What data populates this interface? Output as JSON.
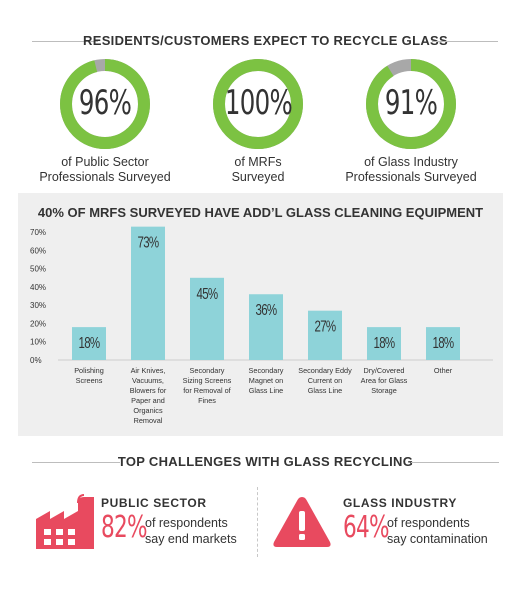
{
  "survey": {
    "title": "RESIDENTS/CUSTOMERS EXPECT TO RECYCLE GLASS",
    "stats": [
      {
        "value": "96%",
        "fraction": 0.96,
        "caption_line1": "of Public Sector",
        "caption_line2": "Professionals Surveyed"
      },
      {
        "value": "100%",
        "fraction": 1.0,
        "caption_line1": "of MRFs",
        "caption_line2": "Surveyed"
      },
      {
        "value": "91%",
        "fraction": 0.91,
        "caption_line1": "of Glass Industry",
        "caption_line2": "Professionals Surveyed"
      }
    ],
    "colors": {
      "ring": "#7cc242",
      "remainder": "#a8a8a8"
    }
  },
  "chart_data": {
    "type": "bar",
    "title": "40% OF MRFS SURVEYED HAVE ADD’L GLASS CLEANING EQUIPMENT",
    "categories": [
      [
        "Polishing",
        "Screens"
      ],
      [
        "Air Knives,",
        "Vacuums,",
        "Blowers for",
        "Paper and",
        "Organics",
        "Removal"
      ],
      [
        "Secondary",
        "Sizing Screens",
        "for Removal of",
        "Fines"
      ],
      [
        "Secondary",
        "Magnet on",
        "Glass Line"
      ],
      [
        "Secondary Eddy",
        "Current on",
        "Glass Line"
      ],
      [
        "Dry/Covered",
        "Area for Glass",
        "Storage"
      ],
      [
        "Other"
      ]
    ],
    "values": [
      18,
      73,
      45,
      36,
      27,
      18,
      18
    ],
    "value_labels": [
      "18%",
      "73%",
      "45%",
      "36%",
      "27%",
      "18%",
      "18%"
    ],
    "yticks": [
      "0%",
      "10%",
      "20%",
      "30%",
      "40%",
      "50%",
      "60%",
      "70%"
    ],
    "ylim": [
      0,
      75
    ],
    "bar_color": "#8ed3d9",
    "grid": false
  },
  "challenges": {
    "title": "TOP CHALLENGES WITH GLASS RECYCLING",
    "items": [
      {
        "heading": "PUBLIC SECTOR",
        "pct": "82%",
        "desc_line1": "of respondents",
        "desc_line2": "say end markets",
        "icon": "factory-icon"
      },
      {
        "heading": "GLASS INDUSTRY",
        "pct": "64%",
        "desc_line1": "of respondents",
        "desc_line2": "say contamination",
        "icon": "warning-icon"
      }
    ],
    "accent": "#e84a5f"
  }
}
